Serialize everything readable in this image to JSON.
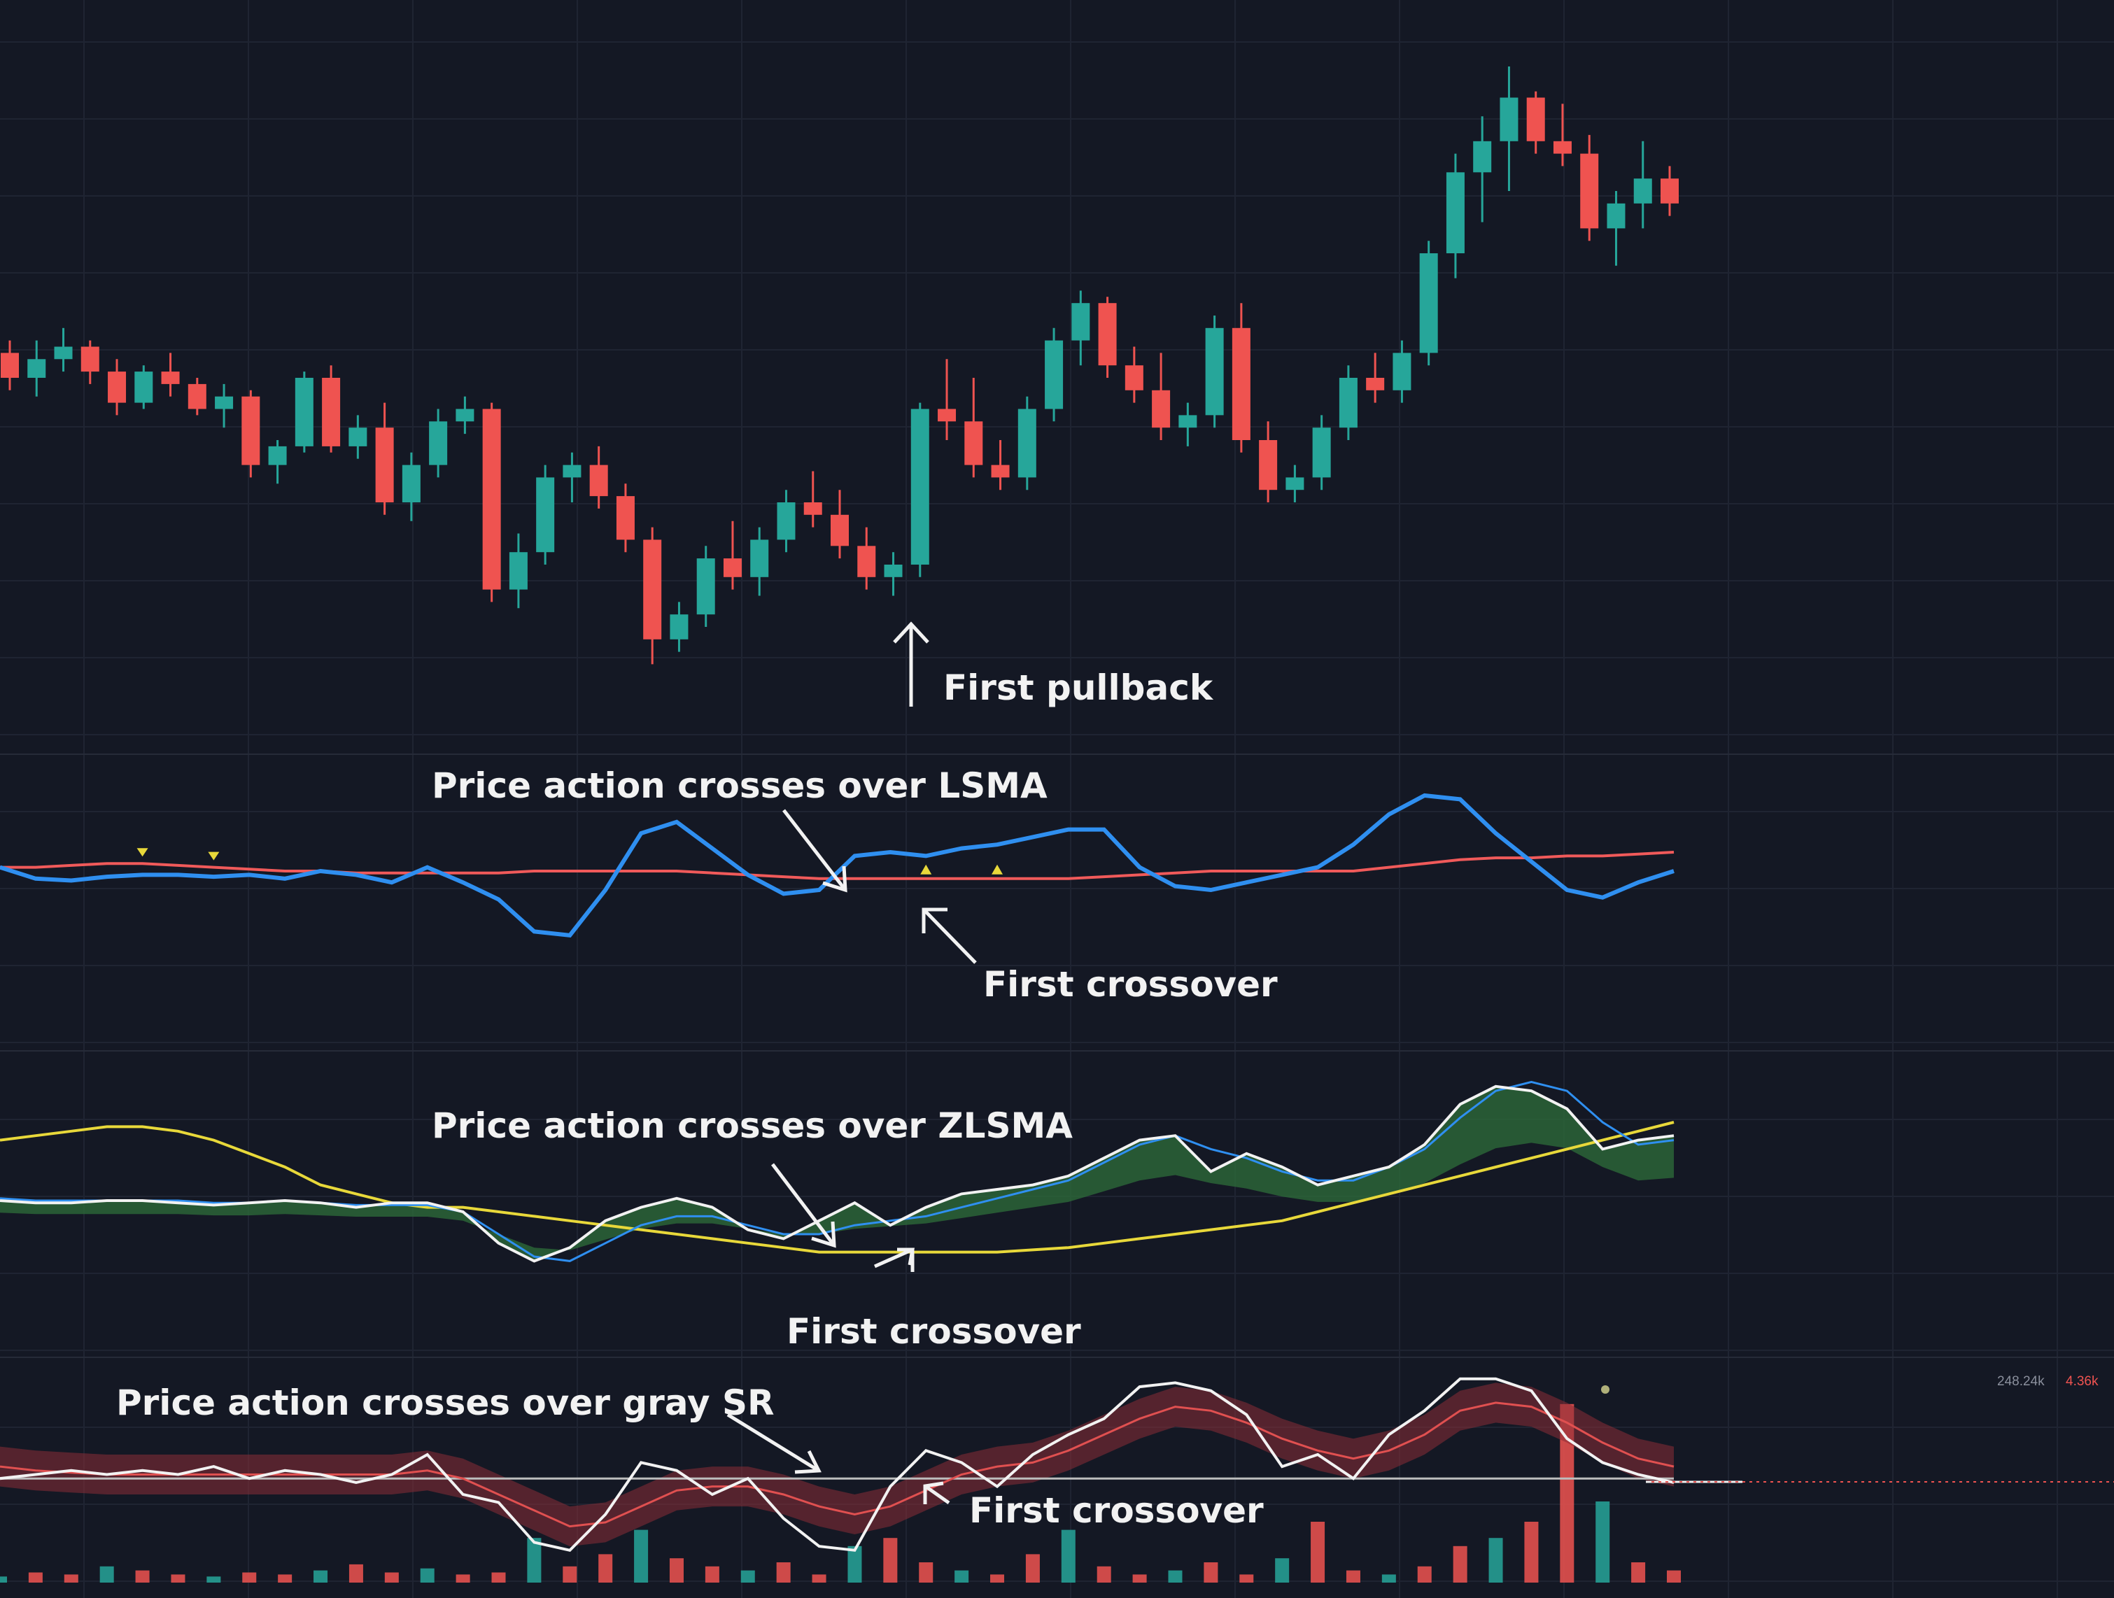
{
  "colors": {
    "background": "#141824",
    "grid": "#1f2432",
    "up": "#26a69a",
    "down": "#ef5350",
    "lsma_line": "#2f8ff0",
    "lsma_ref": "#f05a5a",
    "accent_green": "#28e08a",
    "yellow": "#e8d83a",
    "white": "#f2f2f2",
    "cloud_green": "#2e6e3a",
    "cloud_red": "#8a2e36"
  },
  "chart_data": [
    {
      "id": "price",
      "type": "candlestick",
      "title": "",
      "ylim": [
        0,
        100
      ],
      "annotations": [
        {
          "text": "First pullback",
          "bar": 34
        }
      ],
      "candles": [
        {
          "o": 54,
          "h": 56,
          "l": 48,
          "c": 50
        },
        {
          "o": 50,
          "h": 56,
          "l": 47,
          "c": 53
        },
        {
          "o": 53,
          "h": 58,
          "l": 51,
          "c": 55
        },
        {
          "o": 55,
          "h": 56,
          "l": 49,
          "c": 51
        },
        {
          "o": 51,
          "h": 53,
          "l": 44,
          "c": 46
        },
        {
          "o": 46,
          "h": 52,
          "l": 45,
          "c": 51
        },
        {
          "o": 51,
          "h": 54,
          "l": 47,
          "c": 49
        },
        {
          "o": 49,
          "h": 50,
          "l": 44,
          "c": 45
        },
        {
          "o": 45,
          "h": 49,
          "l": 42,
          "c": 47
        },
        {
          "o": 47,
          "h": 48,
          "l": 34,
          "c": 36
        },
        {
          "o": 36,
          "h": 40,
          "l": 33,
          "c": 39
        },
        {
          "o": 39,
          "h": 51,
          "l": 38,
          "c": 50
        },
        {
          "o": 50,
          "h": 52,
          "l": 38,
          "c": 39
        },
        {
          "o": 39,
          "h": 44,
          "l": 37,
          "c": 42
        },
        {
          "o": 42,
          "h": 46,
          "l": 28,
          "c": 30
        },
        {
          "o": 30,
          "h": 38,
          "l": 27,
          "c": 36
        },
        {
          "o": 36,
          "h": 45,
          "l": 34,
          "c": 43
        },
        {
          "o": 43,
          "h": 47,
          "l": 41,
          "c": 45
        },
        {
          "o": 45,
          "h": 46,
          "l": 14,
          "c": 16
        },
        {
          "o": 16,
          "h": 25,
          "l": 13,
          "c": 22
        },
        {
          "o": 22,
          "h": 36,
          "l": 20,
          "c": 34
        },
        {
          "o": 34,
          "h": 38,
          "l": 30,
          "c": 36
        },
        {
          "o": 36,
          "h": 39,
          "l": 29,
          "c": 31
        },
        {
          "o": 31,
          "h": 33,
          "l": 22,
          "c": 24
        },
        {
          "o": 24,
          "h": 26,
          "l": 4,
          "c": 8
        },
        {
          "o": 8,
          "h": 14,
          "l": 6,
          "c": 12
        },
        {
          "o": 12,
          "h": 23,
          "l": 10,
          "c": 21
        },
        {
          "o": 21,
          "h": 27,
          "l": 16,
          "c": 18
        },
        {
          "o": 18,
          "h": 26,
          "l": 15,
          "c": 24
        },
        {
          "o": 24,
          "h": 32,
          "l": 22,
          "c": 30
        },
        {
          "o": 30,
          "h": 35,
          "l": 26,
          "c": 28
        },
        {
          "o": 28,
          "h": 32,
          "l": 21,
          "c": 23
        },
        {
          "o": 23,
          "h": 26,
          "l": 16,
          "c": 18
        },
        {
          "o": 18,
          "h": 22,
          "l": 15,
          "c": 20
        },
        {
          "o": 20,
          "h": 46,
          "l": 18,
          "c": 45
        },
        {
          "o": 45,
          "h": 53,
          "l": 40,
          "c": 43
        },
        {
          "o": 43,
          "h": 50,
          "l": 34,
          "c": 36
        },
        {
          "o": 36,
          "h": 40,
          "l": 32,
          "c": 34
        },
        {
          "o": 34,
          "h": 47,
          "l": 32,
          "c": 45
        },
        {
          "o": 45,
          "h": 58,
          "l": 43,
          "c": 56
        },
        {
          "o": 56,
          "h": 64,
          "l": 52,
          "c": 62
        },
        {
          "o": 62,
          "h": 63,
          "l": 50,
          "c": 52
        },
        {
          "o": 52,
          "h": 55,
          "l": 46,
          "c": 48
        },
        {
          "o": 48,
          "h": 54,
          "l": 40,
          "c": 42
        },
        {
          "o": 42,
          "h": 46,
          "l": 39,
          "c": 44
        },
        {
          "o": 44,
          "h": 60,
          "l": 42,
          "c": 58
        },
        {
          "o": 58,
          "h": 62,
          "l": 38,
          "c": 40
        },
        {
          "o": 40,
          "h": 43,
          "l": 30,
          "c": 32
        },
        {
          "o": 32,
          "h": 36,
          "l": 30,
          "c": 34
        },
        {
          "o": 34,
          "h": 44,
          "l": 32,
          "c": 42
        },
        {
          "o": 42,
          "h": 52,
          "l": 40,
          "c": 50
        },
        {
          "o": 50,
          "h": 54,
          "l": 46,
          "c": 48
        },
        {
          "o": 48,
          "h": 56,
          "l": 46,
          "c": 54
        },
        {
          "o": 54,
          "h": 72,
          "l": 52,
          "c": 70
        },
        {
          "o": 70,
          "h": 86,
          "l": 66,
          "c": 83
        },
        {
          "o": 83,
          "h": 92,
          "l": 75,
          "c": 88
        },
        {
          "o": 88,
          "h": 100,
          "l": 80,
          "c": 95
        },
        {
          "o": 95,
          "h": 96,
          "l": 86,
          "c": 88
        },
        {
          "o": 88,
          "h": 94,
          "l": 84,
          "c": 86
        },
        {
          "o": 86,
          "h": 89,
          "l": 72,
          "c": 74
        },
        {
          "o": 74,
          "h": 80,
          "l": 68,
          "c": 78
        },
        {
          "o": 78,
          "h": 88,
          "l": 74,
          "c": 82
        },
        {
          "o": 82,
          "h": 84,
          "l": 76,
          "c": 78
        }
      ]
    },
    {
      "id": "lsma-pane",
      "type": "line",
      "ylim": [
        0,
        100
      ],
      "annotations": [
        {
          "text": "Price action crosses over LSMA"
        },
        {
          "text": "First crossover"
        }
      ],
      "series": [
        {
          "name": "LSMA",
          "color": "#2f8ff0",
          "values": [
            52,
            46,
            45,
            47,
            48,
            48,
            47,
            48,
            46,
            50,
            48,
            44,
            52,
            44,
            35,
            18,
            16,
            40,
            70,
            76,
            62,
            48,
            38,
            40,
            58,
            60,
            58,
            62,
            64,
            68,
            72,
            72,
            52,
            42,
            40,
            44,
            48,
            52,
            64,
            80,
            90,
            88,
            70,
            55,
            40,
            36,
            44,
            50
          ]
        },
        {
          "name": "LSMA reference",
          "color": "#f05a5a",
          "values": [
            52,
            52,
            53,
            54,
            54,
            53,
            52,
            51,
            50,
            50,
            49,
            49,
            49,
            49,
            49,
            50,
            50,
            50,
            50,
            50,
            49,
            48,
            47,
            46,
            46,
            46,
            46,
            46,
            46,
            46,
            46,
            47,
            48,
            49,
            50,
            50,
            50,
            50,
            50,
            52,
            54,
            56,
            57,
            57,
            58,
            58,
            59,
            60
          ]
        }
      ],
      "markers": [
        {
          "bar": 4,
          "shape": "down"
        },
        {
          "bar": 6,
          "shape": "down"
        },
        {
          "bar": 26,
          "shape": "up"
        },
        {
          "bar": 28,
          "shape": "up"
        }
      ]
    },
    {
      "id": "zlsma-pane",
      "type": "line",
      "ylim": [
        0,
        100
      ],
      "annotations": [
        {
          "text": "Price action crosses over ZLSMA"
        },
        {
          "text": "First crossover"
        }
      ],
      "series": [
        {
          "name": "Price",
          "color": "#f2f2f2",
          "values": [
            45,
            44,
            44,
            45,
            45,
            44,
            43,
            44,
            45,
            44,
            42,
            44,
            44,
            40,
            26,
            18,
            24,
            36,
            42,
            46,
            42,
            32,
            28,
            36,
            44,
            34,
            42,
            48,
            50,
            52,
            56,
            64,
            72,
            74,
            58,
            66,
            60,
            52,
            56,
            60,
            70,
            88,
            96,
            94,
            86,
            68,
            72,
            74
          ]
        },
        {
          "name": "Signal",
          "color": "#2f8ff0",
          "values": [
            46,
            45,
            45,
            45,
            45,
            45,
            44,
            44,
            45,
            44,
            43,
            43,
            43,
            40,
            30,
            20,
            18,
            26,
            34,
            38,
            38,
            34,
            30,
            30,
            34,
            36,
            38,
            42,
            46,
            50,
            54,
            62,
            70,
            74,
            68,
            64,
            58,
            54,
            54,
            60,
            68,
            82,
            94,
            98,
            94,
            80,
            70,
            72
          ]
        },
        {
          "name": "Slow",
          "color": "#e8d83a",
          "values": [
            72,
            74,
            76,
            78,
            78,
            76,
            72,
            66,
            60,
            52,
            48,
            44,
            42,
            42,
            40,
            38,
            36,
            34,
            32,
            30,
            28,
            26,
            24,
            22,
            22,
            22,
            22,
            22,
            22,
            23,
            24,
            26,
            28,
            30,
            32,
            34,
            36,
            40,
            44,
            48,
            52,
            56,
            60,
            64,
            68,
            72,
            76,
            80
          ]
        }
      ]
    },
    {
      "id": "sr-pane",
      "type": "line",
      "ylim": [
        0,
        100
      ],
      "annotations": [
        {
          "text": "Price action crosses over gray SR"
        },
        {
          "text": "First crossover"
        }
      ],
      "axis_labels": [
        "248.24k",
        "4.36k"
      ],
      "series": [
        {
          "name": "Price",
          "color": "#f2f2f2",
          "values": [
            48,
            50,
            52,
            50,
            52,
            50,
            54,
            48,
            52,
            50,
            46,
            50,
            60,
            40,
            36,
            16,
            12,
            30,
            56,
            52,
            40,
            48,
            28,
            14,
            12,
            44,
            62,
            56,
            44,
            60,
            70,
            78,
            94,
            96,
            92,
            80,
            54,
            60,
            48,
            70,
            82,
            98,
            98,
            92,
            68,
            56,
            50,
            46
          ]
        },
        {
          "name": "SR",
          "color": "#e05050",
          "values": [
            54,
            52,
            51,
            50,
            50,
            50,
            50,
            50,
            50,
            50,
            50,
            50,
            52,
            48,
            40,
            32,
            24,
            26,
            34,
            42,
            44,
            44,
            40,
            34,
            30,
            34,
            42,
            50,
            54,
            56,
            62,
            70,
            78,
            84,
            82,
            76,
            68,
            62,
            58,
            62,
            70,
            82,
            86,
            84,
            76,
            66,
            58,
            54
          ]
        },
        {
          "name": "Gray SR",
          "color": "#bdbdbd",
          "values": [
            48,
            48,
            48,
            48,
            48,
            48,
            48,
            48,
            48,
            48,
            48,
            48,
            48,
            48,
            48,
            48,
            48,
            48,
            48,
            48,
            48,
            48,
            48,
            48,
            48,
            48,
            48,
            48,
            48,
            48,
            48,
            48,
            48,
            48,
            48,
            48,
            48,
            48,
            48,
            48,
            48,
            48,
            48,
            48,
            48,
            48,
            48,
            48
          ]
        }
      ],
      "volume": [
        3,
        5,
        4,
        8,
        6,
        4,
        3,
        5,
        4,
        6,
        9,
        5,
        7,
        4,
        5,
        22,
        8,
        14,
        26,
        12,
        8,
        6,
        10,
        4,
        18,
        22,
        10,
        6,
        4,
        14,
        26,
        8,
        4,
        6,
        10,
        4,
        12,
        30,
        6,
        4,
        8,
        18,
        22,
        30,
        88,
        40,
        10,
        6
      ]
    }
  ]
}
